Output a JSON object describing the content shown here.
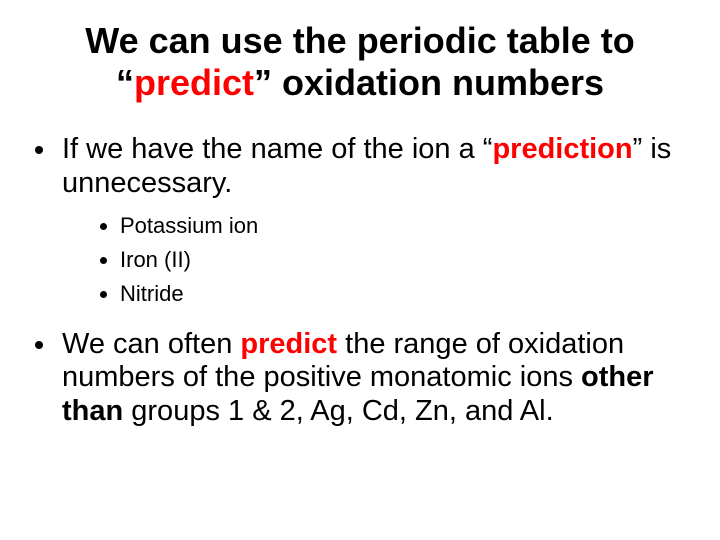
{
  "title": {
    "pre": "We can use the periodic table to “",
    "highlight": "predict",
    "post": "” oxidation numbers"
  },
  "bullets": {
    "b1": {
      "pre": "If we have the name of the ion a “",
      "highlight": "prediction",
      "post": "” is unnecessary."
    },
    "sub": {
      "s1": "Potassium ion",
      "s2": "Iron (II)",
      "s3": "Nitride"
    },
    "b2": {
      "p1": "We can often ",
      "predict": "predict",
      "p2": " the range of oxidation numbers of the positive monatomic ions ",
      "other": "other than",
      "p3": " groups 1 & 2, Ag, Cd, Zn, and Al."
    }
  },
  "colors": {
    "text": "#000000",
    "highlight": "#ff0000",
    "background": "#ffffff"
  },
  "typography": {
    "title_fontsize": 36,
    "body_fontsize": 29,
    "sub_fontsize": 22,
    "font_family": "Arial"
  }
}
